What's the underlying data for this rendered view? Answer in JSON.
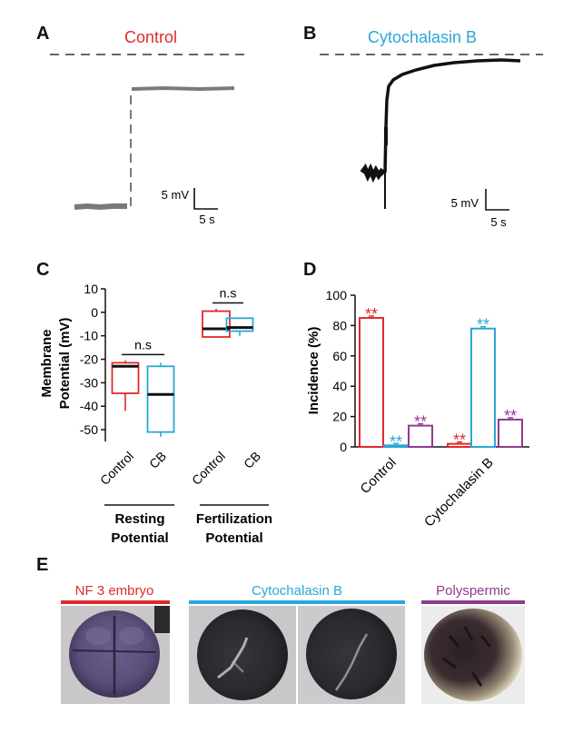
{
  "colors": {
    "control": "#e02a2a",
    "cytochalasin": "#2aa7d8",
    "polyspermic": "#8e3a8e",
    "trace_gray": "#7a7a7a",
    "dash": "#666666",
    "black": "#111111"
  },
  "panelA": {
    "letter": "A",
    "title": "Control",
    "scale_v": "5 mV",
    "scale_t": "5 s"
  },
  "panelB": {
    "letter": "B",
    "title": "Cytochalasin B",
    "scale_v": "5 mV",
    "scale_t": "5 s"
  },
  "panelC": {
    "letter": "C",
    "ylabel_line1": "Membrane",
    "ylabel_line2": "Potential (mV)",
    "yticks": [
      "10",
      "0",
      "-10",
      "-20",
      "-30",
      "-40",
      "-50"
    ],
    "categories": [
      "Control",
      "CB",
      "Control",
      "CB"
    ],
    "sig": [
      "n.s",
      "n.s"
    ],
    "group_labels": [
      [
        "Resting",
        "Potential"
      ],
      [
        "Fertilization",
        "Potential"
      ]
    ]
  },
  "panelD": {
    "letter": "D",
    "ylabel": "Incidence (%)",
    "yticks": [
      "100",
      "80",
      "60",
      "40",
      "20",
      "0"
    ],
    "groups": [
      "Control",
      "Cytochalasin B"
    ],
    "star_label": "**"
  },
  "panelE": {
    "letter": "E",
    "labels": [
      "NF 3 embryo",
      "Cytochalasin B",
      "Polyspermic"
    ]
  },
  "chart_data": [
    {
      "type": "box",
      "panel": "C",
      "ylim": [
        -55,
        10
      ],
      "categories": [
        "Control",
        "CB",
        "Control",
        "CB"
      ],
      "groups": [
        "Resting Potential",
        "Fertilization Potential"
      ],
      "boxes": [
        {
          "category": "Control",
          "group": "Resting Potential",
          "min": -42,
          "q1": -34.5,
          "median": -23,
          "q3": -21.5,
          "max": -20.5
        },
        {
          "category": "CB",
          "group": "Resting Potential",
          "min": -53,
          "q1": -51,
          "median": -35,
          "q3": -23,
          "max": -21.5
        },
        {
          "category": "Control",
          "group": "Fertilization Potential",
          "min": -10.5,
          "q1": -10.5,
          "median": -7,
          "q3": 0.5,
          "max": 1.5
        },
        {
          "category": "CB",
          "group": "Fertilization Potential",
          "min": -10,
          "q1": -8,
          "median": -6.5,
          "q3": -2.5,
          "max": -2.5
        }
      ],
      "comparisons": [
        {
          "between": [
            "Control",
            "CB"
          ],
          "group": "Resting Potential",
          "label": "n.s",
          "y": -18
        },
        {
          "between": [
            "Control",
            "CB"
          ],
          "group": "Fertilization Potential",
          "label": "n.s",
          "y": 4
        }
      ]
    },
    {
      "type": "bar",
      "panel": "D",
      "ylim": [
        0,
        100
      ],
      "categories": [
        "Control",
        "Cytochalasin B"
      ],
      "series": [
        {
          "color": "#e02a2a",
          "values": [
            85,
            2
          ]
        },
        {
          "color": "#2aa7d8",
          "values": [
            1,
            78
          ]
        },
        {
          "color": "#8e3a8e",
          "values": [
            14,
            18
          ]
        }
      ],
      "annotations": "** over each bar"
    }
  ]
}
